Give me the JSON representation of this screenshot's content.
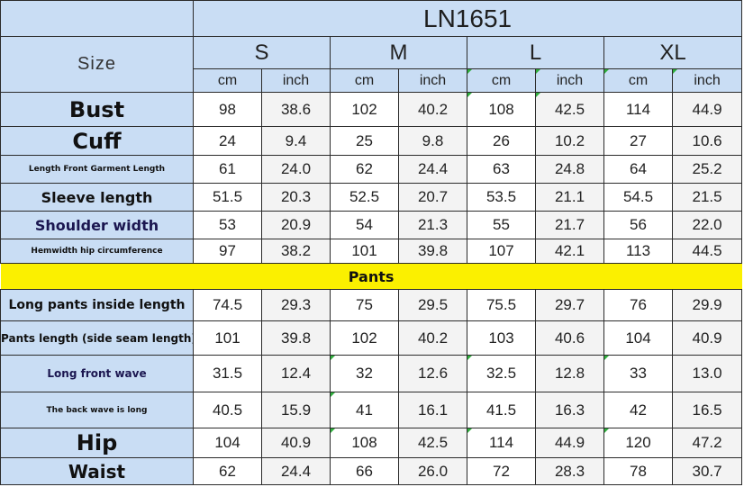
{
  "title": "LN1651",
  "size_label": "Size",
  "sizes": [
    "S",
    "M",
    "L",
    "XL"
  ],
  "units": [
    "cm",
    "inch",
    "cm",
    "inch",
    "cm",
    "inch",
    "cm",
    "inch"
  ],
  "section_label": "Pants",
  "top_rows": [
    {
      "label": "Bust",
      "values": [
        "98",
        "38.6",
        "102",
        "40.2",
        "108",
        "42.5",
        "114",
        "44.9"
      ]
    },
    {
      "label": "Cuff",
      "values": [
        "24",
        "9.4",
        "25",
        "9.8",
        "26",
        "10.2",
        "27",
        "10.6"
      ]
    },
    {
      "label": "Length Front Garment Length",
      "values": [
        "61",
        "24.0",
        "62",
        "24.4",
        "63",
        "24.8",
        "64",
        "25.2"
      ]
    },
    {
      "label": "Sleeve length",
      "values": [
        "51.5",
        "20.3",
        "52.5",
        "20.7",
        "53.5",
        "21.1",
        "54.5",
        "21.5"
      ]
    },
    {
      "label": "Shoulder width",
      "values": [
        "53",
        "20.9",
        "54",
        "21.3",
        "55",
        "21.7",
        "56",
        "22.0"
      ]
    },
    {
      "label": "Hemwidth hip circumference",
      "values": [
        "97",
        "38.2",
        "101",
        "39.8",
        "107",
        "42.1",
        "113",
        "44.5"
      ]
    }
  ],
  "pants_rows": [
    {
      "label": "Long pants inside length",
      "values": [
        "74.5",
        "29.3",
        "75",
        "29.5",
        "75.5",
        "29.7",
        "76",
        "29.9"
      ]
    },
    {
      "label": "Pants length (side seam length)",
      "values": [
        "101",
        "39.8",
        "102",
        "40.2",
        "103",
        "40.6",
        "104",
        "40.9"
      ]
    },
    {
      "label": "Long front wave",
      "values": [
        "31.5",
        "12.4",
        "32",
        "12.6",
        "32.5",
        "12.8",
        "33",
        "13.0"
      ]
    },
    {
      "label": "The back wave is long",
      "values": [
        "40.5",
        "15.9",
        "41",
        "16.1",
        "41.5",
        "16.3",
        "42",
        "16.5"
      ]
    },
    {
      "label": "Hip",
      "values": [
        "104",
        "40.9",
        "108",
        "42.5",
        "114",
        "44.9",
        "120",
        "47.2"
      ]
    },
    {
      "label": "Waist",
      "values": [
        "62",
        "24.4",
        "66",
        "26.0",
        "72",
        "28.3",
        "78",
        "30.7"
      ]
    }
  ],
  "colors": {
    "header_bg": "#c9ddf4",
    "band_bg": "#fbf000",
    "corner_mark": "#2fae3c"
  }
}
